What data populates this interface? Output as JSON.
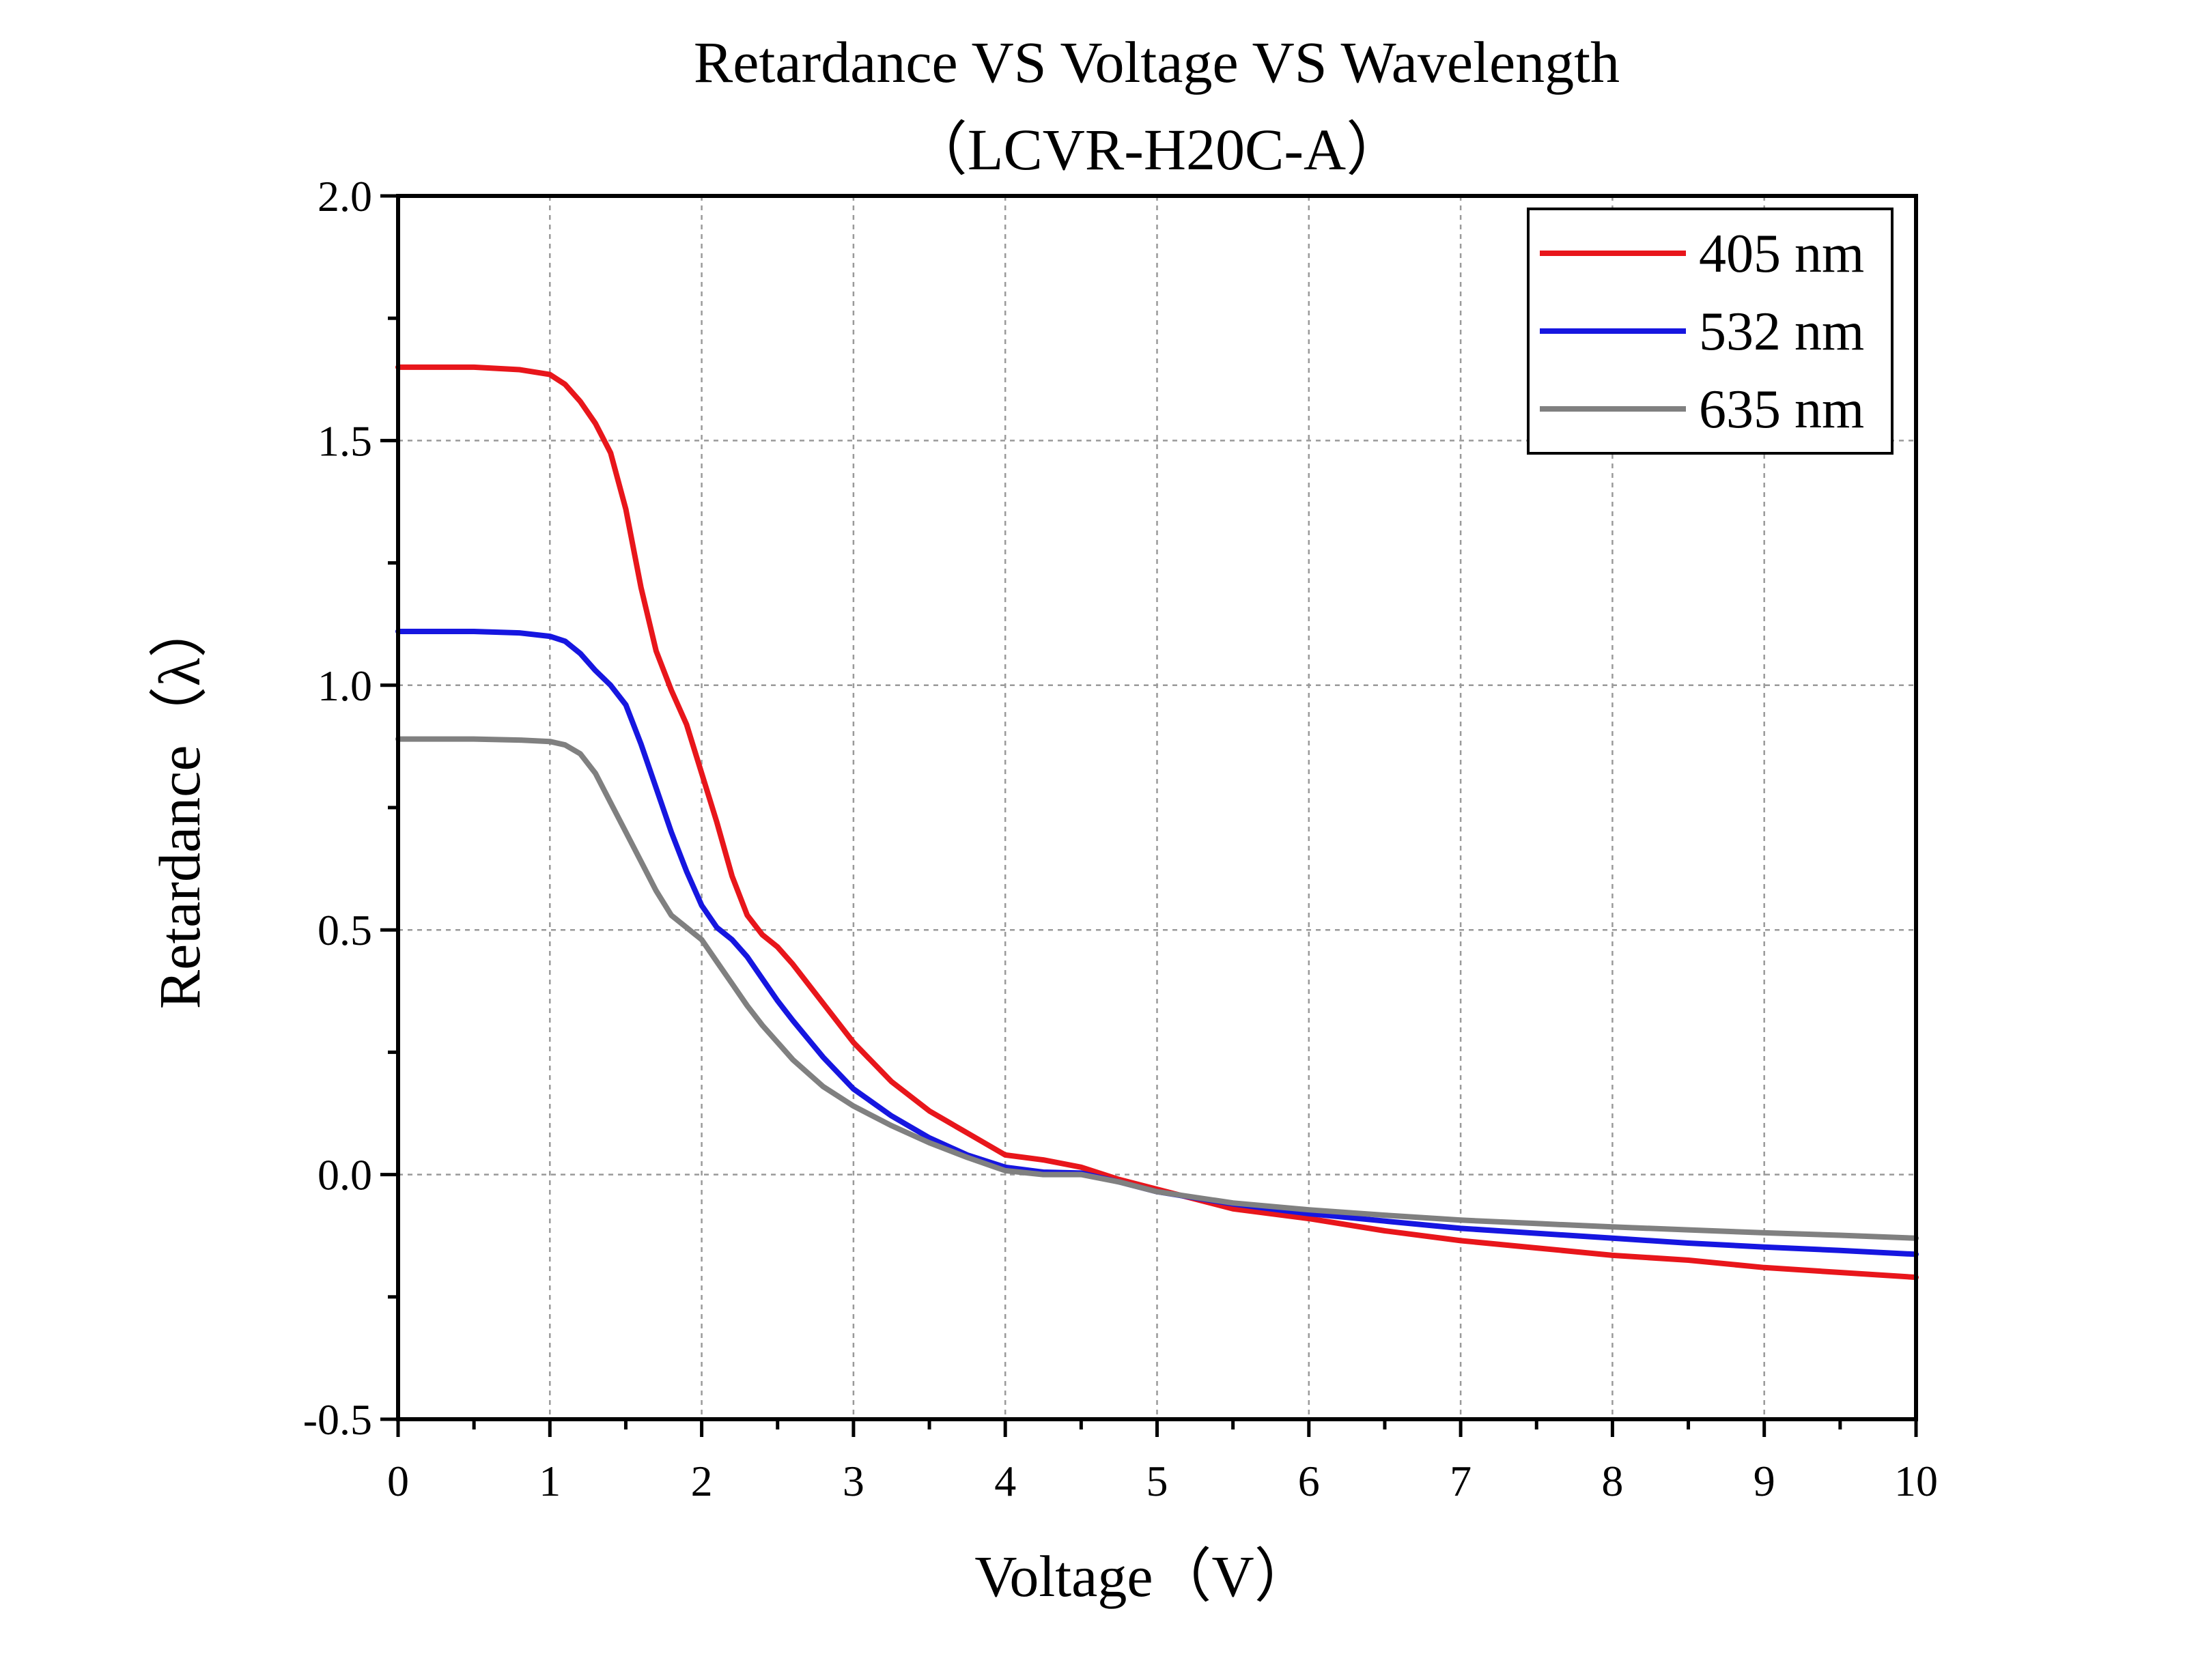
{
  "chart_data": {
    "type": "line",
    "title": "Retardance VS Voltage VS Wavelength",
    "subtitle": "（LCVR-H20C-A）",
    "xlabel": "Voltage（V）",
    "ylabel": "Retardance（λ）",
    "xlim": [
      0,
      10
    ],
    "ylim": [
      -0.5,
      2.0
    ],
    "xticks": [
      0,
      1,
      2,
      3,
      4,
      5,
      6,
      7,
      8,
      9,
      10
    ],
    "xtick_labels": [
      "0",
      "1",
      "2",
      "3",
      "4",
      "5",
      "6",
      "7",
      "8",
      "9",
      "10"
    ],
    "yticks": [
      -0.5,
      0.0,
      0.5,
      1.0,
      1.5,
      2.0
    ],
    "ytick_labels": [
      "-0.5",
      "0.0",
      "0.5",
      "1.0",
      "1.5",
      "2.0"
    ],
    "grid": true,
    "legend_position": "top-right",
    "series": [
      {
        "name": "405 nm",
        "color": "#e8161b",
        "x": [
          0,
          0.5,
          0.8,
          1.0,
          1.1,
          1.2,
          1.3,
          1.4,
          1.5,
          1.6,
          1.7,
          1.8,
          1.9,
          2.0,
          2.1,
          2.2,
          2.3,
          2.4,
          2.5,
          2.6,
          2.8,
          3.0,
          3.25,
          3.5,
          3.75,
          4.0,
          4.25,
          4.5,
          4.75,
          5.0,
          5.5,
          6.0,
          6.5,
          7.0,
          7.5,
          8.0,
          8.5,
          9.0,
          9.5,
          10.0
        ],
        "y": [
          1.65,
          1.65,
          1.645,
          1.635,
          1.615,
          1.58,
          1.535,
          1.475,
          1.36,
          1.2,
          1.07,
          0.99,
          0.92,
          0.82,
          0.72,
          0.61,
          0.53,
          0.49,
          0.465,
          0.43,
          0.35,
          0.27,
          0.19,
          0.13,
          0.085,
          0.04,
          0.03,
          0.015,
          -0.01,
          -0.03,
          -0.07,
          -0.09,
          -0.115,
          -0.135,
          -0.15,
          -0.165,
          -0.175,
          -0.19,
          -0.2,
          -0.21
        ]
      },
      {
        "name": "532 nm",
        "color": "#1616e0",
        "x": [
          0,
          0.5,
          0.8,
          1.0,
          1.1,
          1.2,
          1.3,
          1.4,
          1.5,
          1.6,
          1.7,
          1.8,
          1.9,
          2.0,
          2.1,
          2.2,
          2.3,
          2.4,
          2.5,
          2.6,
          2.8,
          3.0,
          3.25,
          3.5,
          3.75,
          4.0,
          4.25,
          4.5,
          4.75,
          5.0,
          5.5,
          6.0,
          6.5,
          7.0,
          7.5,
          8.0,
          8.5,
          9.0,
          9.5,
          10.0
        ],
        "y": [
          1.11,
          1.11,
          1.107,
          1.1,
          1.09,
          1.065,
          1.03,
          1.0,
          0.96,
          0.88,
          0.79,
          0.7,
          0.62,
          0.55,
          0.505,
          0.48,
          0.445,
          0.4,
          0.355,
          0.315,
          0.24,
          0.175,
          0.12,
          0.075,
          0.04,
          0.015,
          0.005,
          0.003,
          -0.015,
          -0.035,
          -0.06,
          -0.08,
          -0.095,
          -0.11,
          -0.12,
          -0.13,
          -0.14,
          -0.148,
          -0.155,
          -0.163
        ]
      },
      {
        "name": "635 nm",
        "color": "#808080",
        "x": [
          0,
          0.5,
          0.8,
          1.0,
          1.1,
          1.2,
          1.3,
          1.4,
          1.5,
          1.6,
          1.7,
          1.8,
          1.9,
          2.0,
          2.1,
          2.2,
          2.3,
          2.4,
          2.5,
          2.6,
          2.8,
          3.0,
          3.25,
          3.5,
          3.75,
          4.0,
          4.25,
          4.5,
          4.75,
          5.0,
          5.5,
          6.0,
          6.5,
          7.0,
          7.5,
          8.0,
          8.5,
          9.0,
          9.5,
          10.0
        ],
        "y": [
          0.89,
          0.89,
          0.888,
          0.885,
          0.878,
          0.86,
          0.82,
          0.76,
          0.7,
          0.64,
          0.58,
          0.53,
          0.505,
          0.48,
          0.435,
          0.39,
          0.345,
          0.305,
          0.27,
          0.235,
          0.18,
          0.14,
          0.1,
          0.065,
          0.035,
          0.008,
          0.0,
          0.0,
          -0.015,
          -0.035,
          -0.058,
          -0.072,
          -0.083,
          -0.093,
          -0.1,
          -0.107,
          -0.113,
          -0.119,
          -0.124,
          -0.13
        ]
      }
    ]
  }
}
